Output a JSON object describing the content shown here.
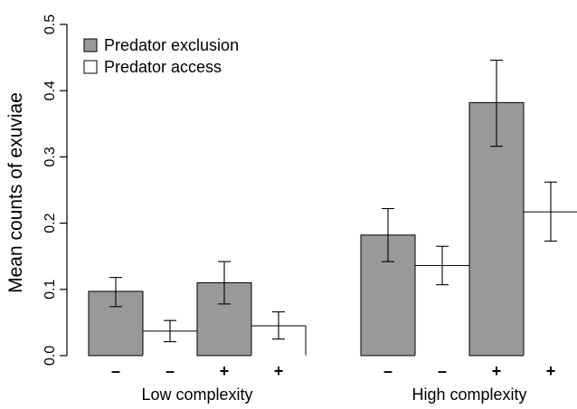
{
  "chart_data": {
    "type": "bar",
    "title": "",
    "ylabel": "Mean counts of exuviae",
    "ylim": [
      0,
      0.5
    ],
    "yticks": [
      0.0,
      0.1,
      0.2,
      0.3,
      0.4,
      0.5
    ],
    "ytick_labels": [
      "0.0",
      "0.1",
      "0.2",
      "0.3",
      "0.4",
      "0.5"
    ],
    "grid": false,
    "legend": {
      "placement": "top-left",
      "entries": [
        {
          "label": "Predator exclusion",
          "color": "#999999"
        },
        {
          "label": "Predator access",
          "color": "#ffffff"
        }
      ]
    },
    "groups": [
      {
        "label": "Low complexity",
        "bars": [
          {
            "tick": "–",
            "series": "Predator exclusion",
            "value": 0.097,
            "err_low": 0.074,
            "err_high": 0.118
          },
          {
            "tick": "–",
            "series": "Predator access",
            "value": 0.037,
            "err_low": 0.021,
            "err_high": 0.053
          },
          {
            "tick": "+",
            "series": "Predator exclusion",
            "value": 0.11,
            "err_low": 0.078,
            "err_high": 0.142
          },
          {
            "tick": "+",
            "series": "Predator access",
            "value": 0.045,
            "err_low": 0.025,
            "err_high": 0.066
          }
        ]
      },
      {
        "label": "High complexity",
        "bars": [
          {
            "tick": "–",
            "series": "Predator exclusion",
            "value": 0.182,
            "err_low": 0.142,
            "err_high": 0.222
          },
          {
            "tick": "–",
            "series": "Predator access",
            "value": 0.136,
            "err_low": 0.107,
            "err_high": 0.165
          },
          {
            "tick": "+",
            "series": "Predator exclusion",
            "value": 0.382,
            "err_low": 0.316,
            "err_high": 0.446
          },
          {
            "tick": "+",
            "series": "Predator access",
            "value": 0.217,
            "err_low": 0.173,
            "err_high": 0.262
          }
        ]
      }
    ]
  }
}
